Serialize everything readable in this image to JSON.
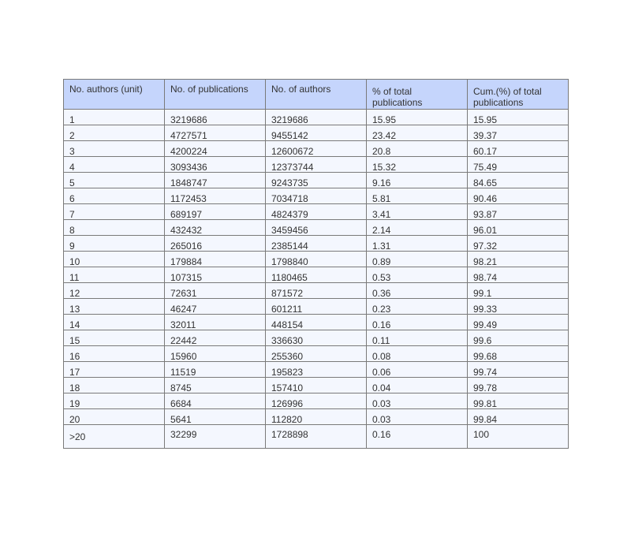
{
  "table": {
    "headers": [
      "No. authors (unit)",
      "No. of publications",
      "No. of authors",
      "% of total publications",
      "Cum.(%) of total publications"
    ],
    "rows": [
      [
        "1",
        "3219686",
        "3219686",
        "15.95",
        "15.95"
      ],
      [
        "2",
        "4727571",
        "9455142",
        "23.42",
        "39.37"
      ],
      [
        "3",
        "4200224",
        "12600672",
        "20.8",
        "60.17"
      ],
      [
        "4",
        "3093436",
        "12373744",
        "15.32",
        "75.49"
      ],
      [
        "5",
        "1848747",
        "9243735",
        "9.16",
        "84.65"
      ],
      [
        "6",
        "1172453",
        "7034718",
        "5.81",
        "90.46"
      ],
      [
        "7",
        "689197",
        "4824379",
        "3.41",
        "93.87"
      ],
      [
        "8",
        "432432",
        "3459456",
        "2.14",
        "96.01"
      ],
      [
        "9",
        "265016",
        "2385144",
        "1.31",
        "97.32"
      ],
      [
        "10",
        "179884",
        "1798840",
        "0.89",
        "98.21"
      ],
      [
        "11",
        "107315",
        "1180465",
        "0.53",
        "98.74"
      ],
      [
        "12",
        "72631",
        "871572",
        "0.36",
        "99.1"
      ],
      [
        "13",
        "46247",
        "601211",
        "0.23",
        "99.33"
      ],
      [
        "14",
        "32011",
        "448154",
        "0.16",
        "99.49"
      ],
      [
        "15",
        "22442",
        "336630",
        "0.11",
        "99.6"
      ],
      [
        "16",
        "15960",
        "255360",
        "0.08",
        "99.68"
      ],
      [
        "17",
        "11519",
        "195823",
        "0.06",
        "99.74"
      ],
      [
        "18",
        "8745",
        "157410",
        "0.04",
        "99.78"
      ],
      [
        "19",
        "6684",
        "126996",
        "0.03",
        "99.81"
      ],
      [
        "20",
        "5641",
        "112820",
        "0.03",
        "99.84"
      ],
      [
        ">20",
        "32299",
        "1728898",
        "0.16",
        "100"
      ]
    ]
  }
}
